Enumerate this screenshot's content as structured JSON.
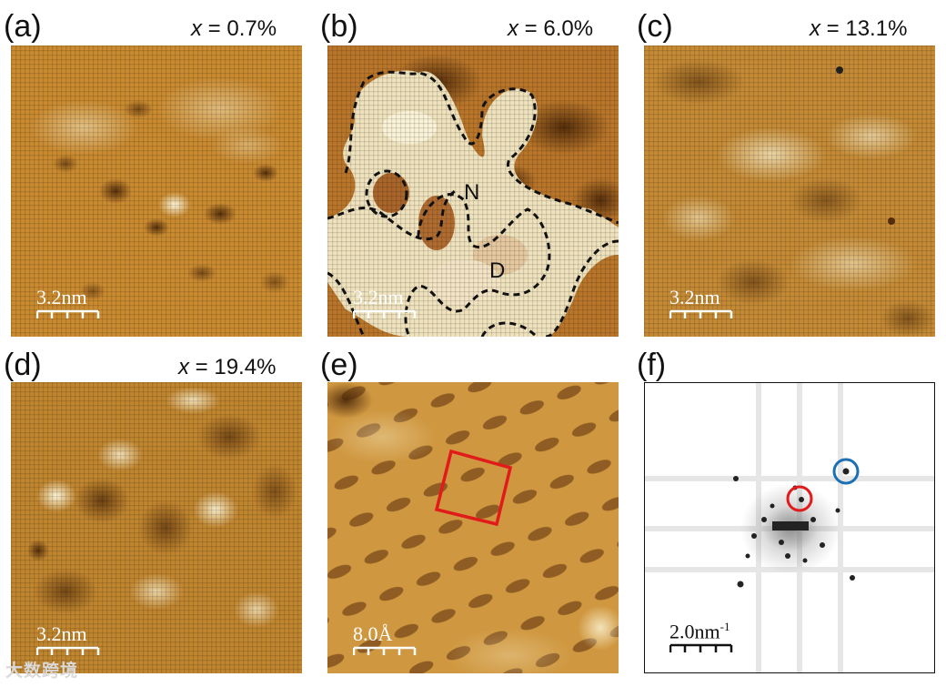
{
  "panels": {
    "a": {
      "label": "(a)",
      "var": "x",
      "value": " = 0.7%",
      "scale": "3.2nm"
    },
    "b": {
      "label": "(b)",
      "var": "x",
      "value": " = 6.0%",
      "scale": "3.2nm",
      "region_n": "N",
      "region_d": "D"
    },
    "c": {
      "label": "(c)",
      "var": "x",
      "value": " = 13.1%",
      "scale": "3.2nm"
    },
    "d": {
      "label": "(d)",
      "var": "x",
      "value": " = 19.4%",
      "scale": "3.2nm"
    },
    "e": {
      "label": "(e)",
      "scale": "8.0Å"
    },
    "f": {
      "label": "(f)",
      "scale": "2.0nm",
      "scale_sup": "-1"
    }
  },
  "colors": {
    "stm_dark": "#6b3a12",
    "stm_mid": "#c8892f",
    "stm_light": "#f7ecc0",
    "box_red": "#e11b1b",
    "circle_red": "#e11b1b",
    "circle_blue": "#1b6fb5"
  },
  "watermark": "大数跨境"
}
